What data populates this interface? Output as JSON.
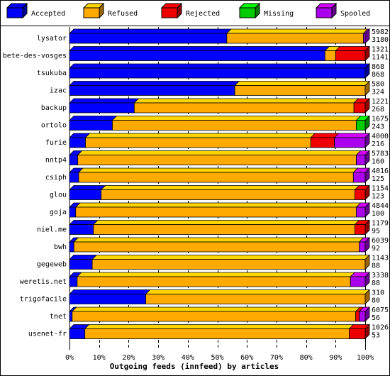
{
  "colors": {
    "Accepted": "#0000ff",
    "Refused": "#ffaa00",
    "Rejected": "#ee0000",
    "Missing": "#00cc00",
    "Spooled": "#aa00ee",
    "background": "#ffffff",
    "frame": "#000000"
  },
  "chart_data": {
    "type": "bar",
    "orientation": "horizontal",
    "stacked": true,
    "xlabel": "Outgoing feeds (innfeed) by articles",
    "ylabel": "",
    "xlim": [
      0,
      100
    ],
    "xunit": "%",
    "xticks": [
      "0%",
      "10%",
      "20%",
      "30%",
      "40%",
      "50%",
      "60%",
      "70%",
      "80%",
      "90%",
      "100%"
    ],
    "legend_position": "top",
    "grid": "vertical dashed",
    "legend": [
      "Accepted",
      "Refused",
      "Rejected",
      "Missing",
      "Spooled"
    ],
    "categories": [
      "lysator",
      "bete-des-vosges",
      "tsukuba",
      "izac",
      "backup",
      "ortolo",
      "furie",
      "nntp4",
      "csiph",
      "glou",
      "goja",
      "niel.me",
      "bwh",
      "gegeweb",
      "weretis.net",
      "trigofacile",
      "tnet",
      "usenet-fr"
    ],
    "total_offered": [
      5982,
      1321,
      868,
      580,
      1221,
      1675,
      4000,
      5783,
      4016,
      1154,
      4844,
      1179,
      6039,
      1143,
      3338,
      310,
      6075,
      1026
    ],
    "accepted_count": [
      3180,
      1141,
      868,
      324,
      268,
      243,
      216,
      160,
      125,
      123,
      100,
      95,
      92,
      88,
      88,
      80,
      56,
      53
    ],
    "series": [
      {
        "name": "Accepted",
        "values": [
          53.2,
          86.4,
          100,
          55.9,
          21.9,
          14.5,
          5.4,
          2.8,
          3.1,
          10.7,
          2.1,
          8.1,
          1.5,
          7.7,
          2.6,
          25.8,
          0.9,
          5.2
        ]
      },
      {
        "name": "Refused",
        "values": [
          46.2,
          3.6,
          0,
          44.1,
          74.3,
          82.5,
          76.2,
          94.2,
          92.9,
          85.8,
          94.9,
          88.4,
          96.5,
          92.3,
          92.4,
          74.2,
          95.9,
          89.4
        ]
      },
      {
        "name": "Rejected",
        "values": [
          0,
          10.0,
          0,
          0,
          3.8,
          0,
          8.0,
          0,
          0,
          3.5,
          0,
          3.5,
          0,
          0,
          0,
          0,
          1.2,
          5.4
        ]
      },
      {
        "name": "Missing",
        "values": [
          0,
          0,
          0,
          0,
          0,
          3.0,
          0,
          0,
          0,
          0,
          0,
          0,
          0,
          0,
          0,
          0,
          0,
          0
        ]
      },
      {
        "name": "Spooled",
        "values": [
          0.6,
          0,
          0,
          0,
          0,
          0,
          10.4,
          3.0,
          4.0,
          0,
          3.0,
          0,
          2.0,
          0,
          5.0,
          0,
          2.0,
          0
        ]
      }
    ]
  }
}
